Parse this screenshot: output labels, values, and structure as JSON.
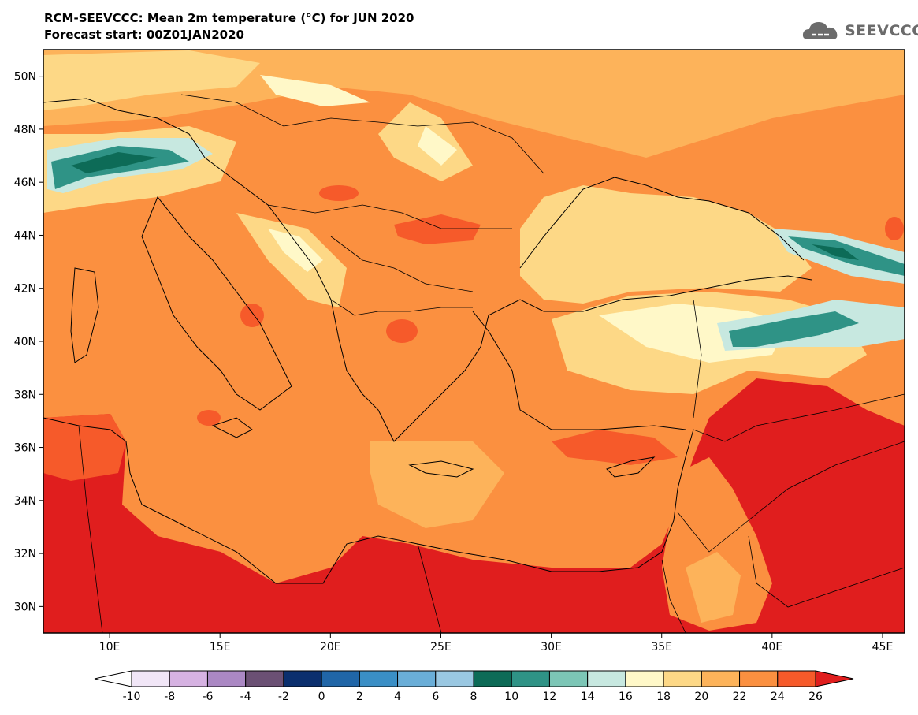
{
  "title": "RCM-SEEVCCC: Mean 2m temperature (°C) for JUN 2020",
  "subtitle": "Forecast start: 00Z01JAN2020",
  "logo": {
    "text": "SEEVCCC",
    "icon": "cloud-icon"
  },
  "map": {
    "lat_range": [
      29,
      51
    ],
    "lon_range": [
      7,
      46
    ],
    "lat_ticks": [
      {
        "value": 30,
        "label": "30N"
      },
      {
        "value": 32,
        "label": "32N"
      },
      {
        "value": 34,
        "label": "34N"
      },
      {
        "value": 36,
        "label": "36N"
      },
      {
        "value": 38,
        "label": "38N"
      },
      {
        "value": 40,
        "label": "40N"
      },
      {
        "value": 42,
        "label": "42N"
      },
      {
        "value": 44,
        "label": "44N"
      },
      {
        "value": 46,
        "label": "46N"
      },
      {
        "value": 48,
        "label": "48N"
      },
      {
        "value": 50,
        "label": "50N"
      }
    ],
    "lon_ticks": [
      {
        "value": 10,
        "label": "10E"
      },
      {
        "value": 15,
        "label": "15E"
      },
      {
        "value": 20,
        "label": "20E"
      },
      {
        "value": 25,
        "label": "25E"
      },
      {
        "value": 30,
        "label": "30E"
      },
      {
        "value": 35,
        "label": "35E"
      },
      {
        "value": 40,
        "label": "40E"
      },
      {
        "value": 45,
        "label": "45E"
      }
    ],
    "background_color": "#fb9040"
  },
  "legend": {
    "labels": [
      "-10",
      "-8",
      "-6",
      "-4",
      "-2",
      "0",
      "2",
      "4",
      "6",
      "8",
      "10",
      "12",
      "14",
      "16",
      "18",
      "20",
      "22",
      "24",
      "26"
    ],
    "colors": [
      "#f1e6f7",
      "#d6b2e2",
      "#ab88c4",
      "#6b5074",
      "#0b2f6e",
      "#2066a8",
      "#3a8fc6",
      "#6aaed8",
      "#9ac8e2",
      "#0d6b57",
      "#2f9386",
      "#7cc6b6",
      "#c7e8e0",
      "#fff8c8",
      "#fdd886",
      "#fdb35a",
      "#fb9040",
      "#f65a2a"
    ],
    "under_color": "#ffffff",
    "over_color": "#e01e1e"
  }
}
